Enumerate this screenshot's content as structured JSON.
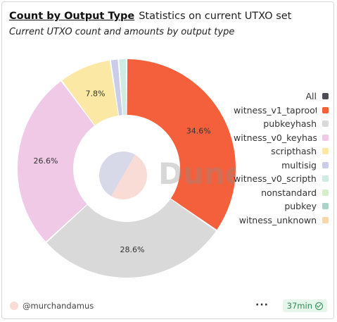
{
  "header": {
    "title": "Count by Output Type",
    "subtitle": "Statistics on current UTXO set",
    "description": "Current UTXO count and amounts by output type"
  },
  "watermark": "Dune",
  "footer": {
    "author": "@murchandamus",
    "more": "···",
    "time": "37min"
  },
  "chart_data": {
    "type": "pie",
    "variant": "donut",
    "legend_position": "right",
    "series_legend": [
      {
        "name": "All",
        "color": "#4a4d52"
      },
      {
        "name": "witness_v1_taproot",
        "color": "#f4603c"
      },
      {
        "name": "pubkeyhash",
        "color": "#d9d9d9"
      },
      {
        "name": "witness_v0_keyhash",
        "color": "#f0c9e6"
      },
      {
        "name": "scripthash",
        "color": "#fae8a4"
      },
      {
        "name": "multisig",
        "color": "#c9cde9"
      },
      {
        "name": "witness_v0_scripthash",
        "color": "#cfece4"
      },
      {
        "name": "nonstandard",
        "color": "#d7eecb"
      },
      {
        "name": "pubkey",
        "color": "#a8d3c8"
      },
      {
        "name": "witness_unknown",
        "color": "#f7d6a8"
      }
    ],
    "slices": [
      {
        "name": "witness_v1_taproot",
        "value": 34.6,
        "label": "34.6%",
        "color": "#f4603c"
      },
      {
        "name": "pubkeyhash",
        "value": 28.6,
        "label": "28.6%",
        "color": "#d9d9d9"
      },
      {
        "name": "witness_v0_keyhash",
        "value": 26.6,
        "label": "26.6%",
        "color": "#f0c9e6"
      },
      {
        "name": "scripthash",
        "value": 7.8,
        "label": "7.8%",
        "color": "#fae8a4"
      },
      {
        "name": "multisig",
        "value": 1.2,
        "label": "",
        "color": "#c9cde9"
      },
      {
        "name": "witness_v0_scripthash",
        "value": 1.2,
        "label": "",
        "color": "#cfece4"
      }
    ],
    "inner_pie": [
      {
        "name": "All",
        "value": 50,
        "color": "#f9dcd5"
      },
      {
        "name": "All",
        "value": 50,
        "color": "#d7d8e8"
      }
    ]
  }
}
